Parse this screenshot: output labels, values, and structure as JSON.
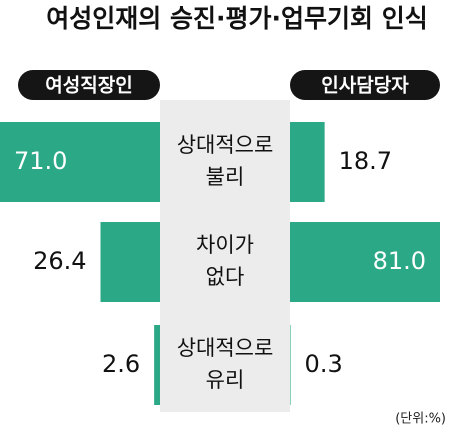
{
  "chart_data": {
    "type": "butterfly",
    "title": "여성인재의 승진·평가·업무기회 인식",
    "categories": [
      [
        "상대적으로",
        "불리"
      ],
      [
        "차이가",
        "없다"
      ],
      [
        "상대적으로",
        "유리"
      ]
    ],
    "series": [
      {
        "name": "여성직장인",
        "color": "#2ba886",
        "values": [
          71,
          26.4,
          2.6
        ],
        "value_labels": [
          "71.0",
          "26.4",
          "2.6"
        ]
      },
      {
        "name": "인사담당자",
        "color": "#2ba886",
        "values": [
          18.7,
          81,
          0.3
        ],
        "value_labels": [
          "18.7",
          "81.0",
          "0.3"
        ]
      }
    ],
    "unit_note": "(단위:%)"
  }
}
